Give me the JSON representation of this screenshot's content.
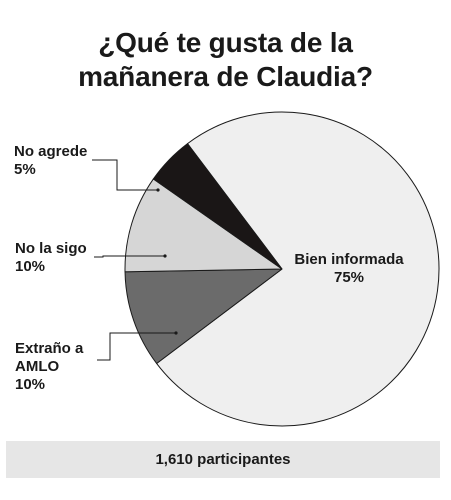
{
  "title": {
    "line1": "¿Qué te gusta de la",
    "line2": "mañanera de Claudia?"
  },
  "footer": {
    "participants": "1,610 participantes"
  },
  "chart_data": {
    "type": "pie",
    "title": "¿Qué te gusta de la mañanera de Claudia?",
    "slices": [
      {
        "label": "Bien informada",
        "value": 75,
        "value_label": "75%",
        "color": "#efefef"
      },
      {
        "label": "Extraño a AMLO",
        "value": 10,
        "value_label": "10%",
        "color": "#6b6b6b"
      },
      {
        "label": "No la sigo",
        "value": 10,
        "value_label": "10%",
        "color": "#d6d6d6"
      },
      {
        "label": "No agrede",
        "value": 5,
        "value_label": "5%",
        "color": "#1a1616"
      }
    ],
    "legend": "none",
    "footer_note": "1,610 participantes"
  }
}
